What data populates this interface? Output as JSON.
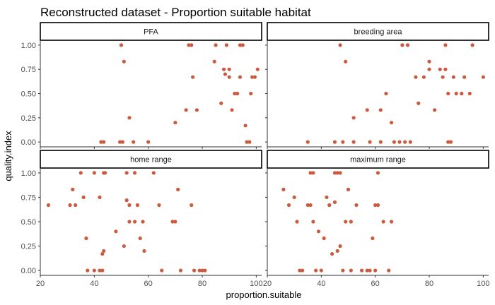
{
  "chart_data": {
    "type": "scatter",
    "title": "Reconstructed dataset - Proportion suitable habitat",
    "xlabel": "proportion.suitable",
    "ylabel": "quality.index",
    "xlim": [
      20,
      102
    ],
    "ylim": [
      -0.05,
      1.05
    ],
    "x_ticks": [
      "20",
      "40",
      "60",
      "80",
      "100"
    ],
    "y_ticks": [
      "0.00",
      "0.25",
      "0.50",
      "0.75",
      "1.00"
    ],
    "grid": false,
    "point_color": "#CC5A3F",
    "facet_layout": "2x2",
    "panels": [
      {
        "name": "PFA",
        "points": [
          [
            42.5,
            0
          ],
          [
            43.5,
            0
          ],
          [
            49.5,
            0
          ],
          [
            50.5,
            0
          ],
          [
            54.5,
            0
          ],
          [
            60,
            0
          ],
          [
            70,
            0.2
          ],
          [
            53,
            0.25
          ],
          [
            74,
            0.33
          ],
          [
            78,
            0.33
          ],
          [
            76.5,
            0.67
          ],
          [
            87,
            0.4
          ],
          [
            84.5,
            0.83
          ],
          [
            50,
            1
          ],
          [
            51,
            0.83
          ],
          [
            75,
            1
          ],
          [
            76,
            1
          ],
          [
            85,
            1
          ],
          [
            89,
            1
          ],
          [
            94,
            1
          ],
          [
            95,
            1
          ],
          [
            88,
            0.75
          ],
          [
            88.5,
            0.7
          ],
          [
            90,
            0.75
          ],
          [
            90,
            0.67
          ],
          [
            91,
            0.33
          ],
          [
            92,
            0.5
          ],
          [
            93,
            0.5
          ],
          [
            94,
            0.67
          ],
          [
            96,
            0.17
          ],
          [
            96.5,
            0
          ],
          [
            97.5,
            0
          ],
          [
            98,
            0.5
          ],
          [
            98.5,
            0.67
          ],
          [
            99.5,
            0.67
          ],
          [
            100.5,
            0.75
          ]
        ]
      },
      {
        "name": "breeding area",
        "points": [
          [
            35,
            0
          ],
          [
            45,
            0
          ],
          [
            48,
            0
          ],
          [
            52,
            0
          ],
          [
            58,
            0
          ],
          [
            62,
            0
          ],
          [
            67,
            0
          ],
          [
            69,
            0
          ],
          [
            71,
            0
          ],
          [
            73,
            0
          ],
          [
            47,
            1
          ],
          [
            49,
            0.83
          ],
          [
            52,
            0.25
          ],
          [
            57,
            0.33
          ],
          [
            62,
            0.33
          ],
          [
            64,
            0.5
          ],
          [
            66,
            0.2
          ],
          [
            70,
            1
          ],
          [
            72,
            1
          ],
          [
            75,
            0.67
          ],
          [
            76,
            0.4
          ],
          [
            78,
            0.67
          ],
          [
            80,
            0.83
          ],
          [
            80,
            0.75
          ],
          [
            82,
            0.33
          ],
          [
            84,
            0.75
          ],
          [
            85,
            0.67
          ],
          [
            86,
            0.75
          ],
          [
            86,
            1
          ],
          [
            87,
            0
          ],
          [
            87,
            0.5
          ],
          [
            88,
            0
          ],
          [
            89,
            0.67
          ],
          [
            90,
            0.5
          ],
          [
            92,
            0.5
          ],
          [
            93,
            0.67
          ],
          [
            95,
            0.5
          ],
          [
            96,
            1
          ],
          [
            100,
            0.67
          ]
        ]
      },
      {
        "name": "home range",
        "points": [
          [
            23,
            0.67
          ],
          [
            31,
            0.67
          ],
          [
            32,
            0.83
          ],
          [
            33,
            0.67
          ],
          [
            35,
            1
          ],
          [
            36,
            0.75
          ],
          [
            37,
            0.33
          ],
          [
            37.5,
            0
          ],
          [
            40,
            0
          ],
          [
            40,
            1
          ],
          [
            42,
            0
          ],
          [
            42,
            0.75
          ],
          [
            43,
            0
          ],
          [
            43,
            0.17
          ],
          [
            43.5,
            0.2
          ],
          [
            43.5,
            1
          ],
          [
            44,
            1
          ],
          [
            48,
            0.4
          ],
          [
            51,
            0.25
          ],
          [
            52,
            1
          ],
          [
            52,
            0.72
          ],
          [
            53,
            0.5
          ],
          [
            53,
            0.67
          ],
          [
            55,
            0.5
          ],
          [
            55,
            1
          ],
          [
            56,
            0.67
          ],
          [
            57,
            0.33
          ],
          [
            58,
            0.5
          ],
          [
            58.5,
            0.2
          ],
          [
            62,
            1
          ],
          [
            64,
            0.67
          ],
          [
            65,
            0
          ],
          [
            69,
            0.5
          ],
          [
            70,
            0.5
          ],
          [
            71,
            0.83
          ],
          [
            72,
            0
          ],
          [
            76,
            0.67
          ],
          [
            77,
            0
          ],
          [
            79,
            0
          ],
          [
            80,
            0
          ],
          [
            81,
            0
          ]
        ]
      },
      {
        "name": "maximum range",
        "points": [
          [
            26,
            0.83
          ],
          [
            28,
            0.67
          ],
          [
            30,
            0.75
          ],
          [
            31,
            0.5
          ],
          [
            32,
            0
          ],
          [
            33,
            0
          ],
          [
            35,
            0.67
          ],
          [
            36,
            1
          ],
          [
            36,
            0.67
          ],
          [
            37,
            1
          ],
          [
            37,
            0.5
          ],
          [
            38,
            0
          ],
          [
            39,
            0.4
          ],
          [
            40,
            0
          ],
          [
            41,
            0.33
          ],
          [
            42,
            0.75
          ],
          [
            43,
            0.67
          ],
          [
            43,
            0.67
          ],
          [
            44,
            0.17
          ],
          [
            45,
            0.7
          ],
          [
            45,
            1
          ],
          [
            46,
            1
          ],
          [
            46,
            0.2
          ],
          [
            47,
            1
          ],
          [
            47,
            0.25
          ],
          [
            48,
            0
          ],
          [
            49,
            0.5
          ],
          [
            50,
            0.83
          ],
          [
            51,
            0
          ],
          [
            51,
            0.5
          ],
          [
            53,
            0.67
          ],
          [
            55,
            0
          ],
          [
            57,
            0
          ],
          [
            58,
            0
          ],
          [
            59,
            0.33
          ],
          [
            60,
            0.67
          ],
          [
            60,
            0
          ],
          [
            61,
            1
          ],
          [
            61,
            0.67
          ],
          [
            63,
            0.5
          ],
          [
            65,
            0
          ],
          [
            66,
            0.5
          ]
        ]
      }
    ]
  }
}
